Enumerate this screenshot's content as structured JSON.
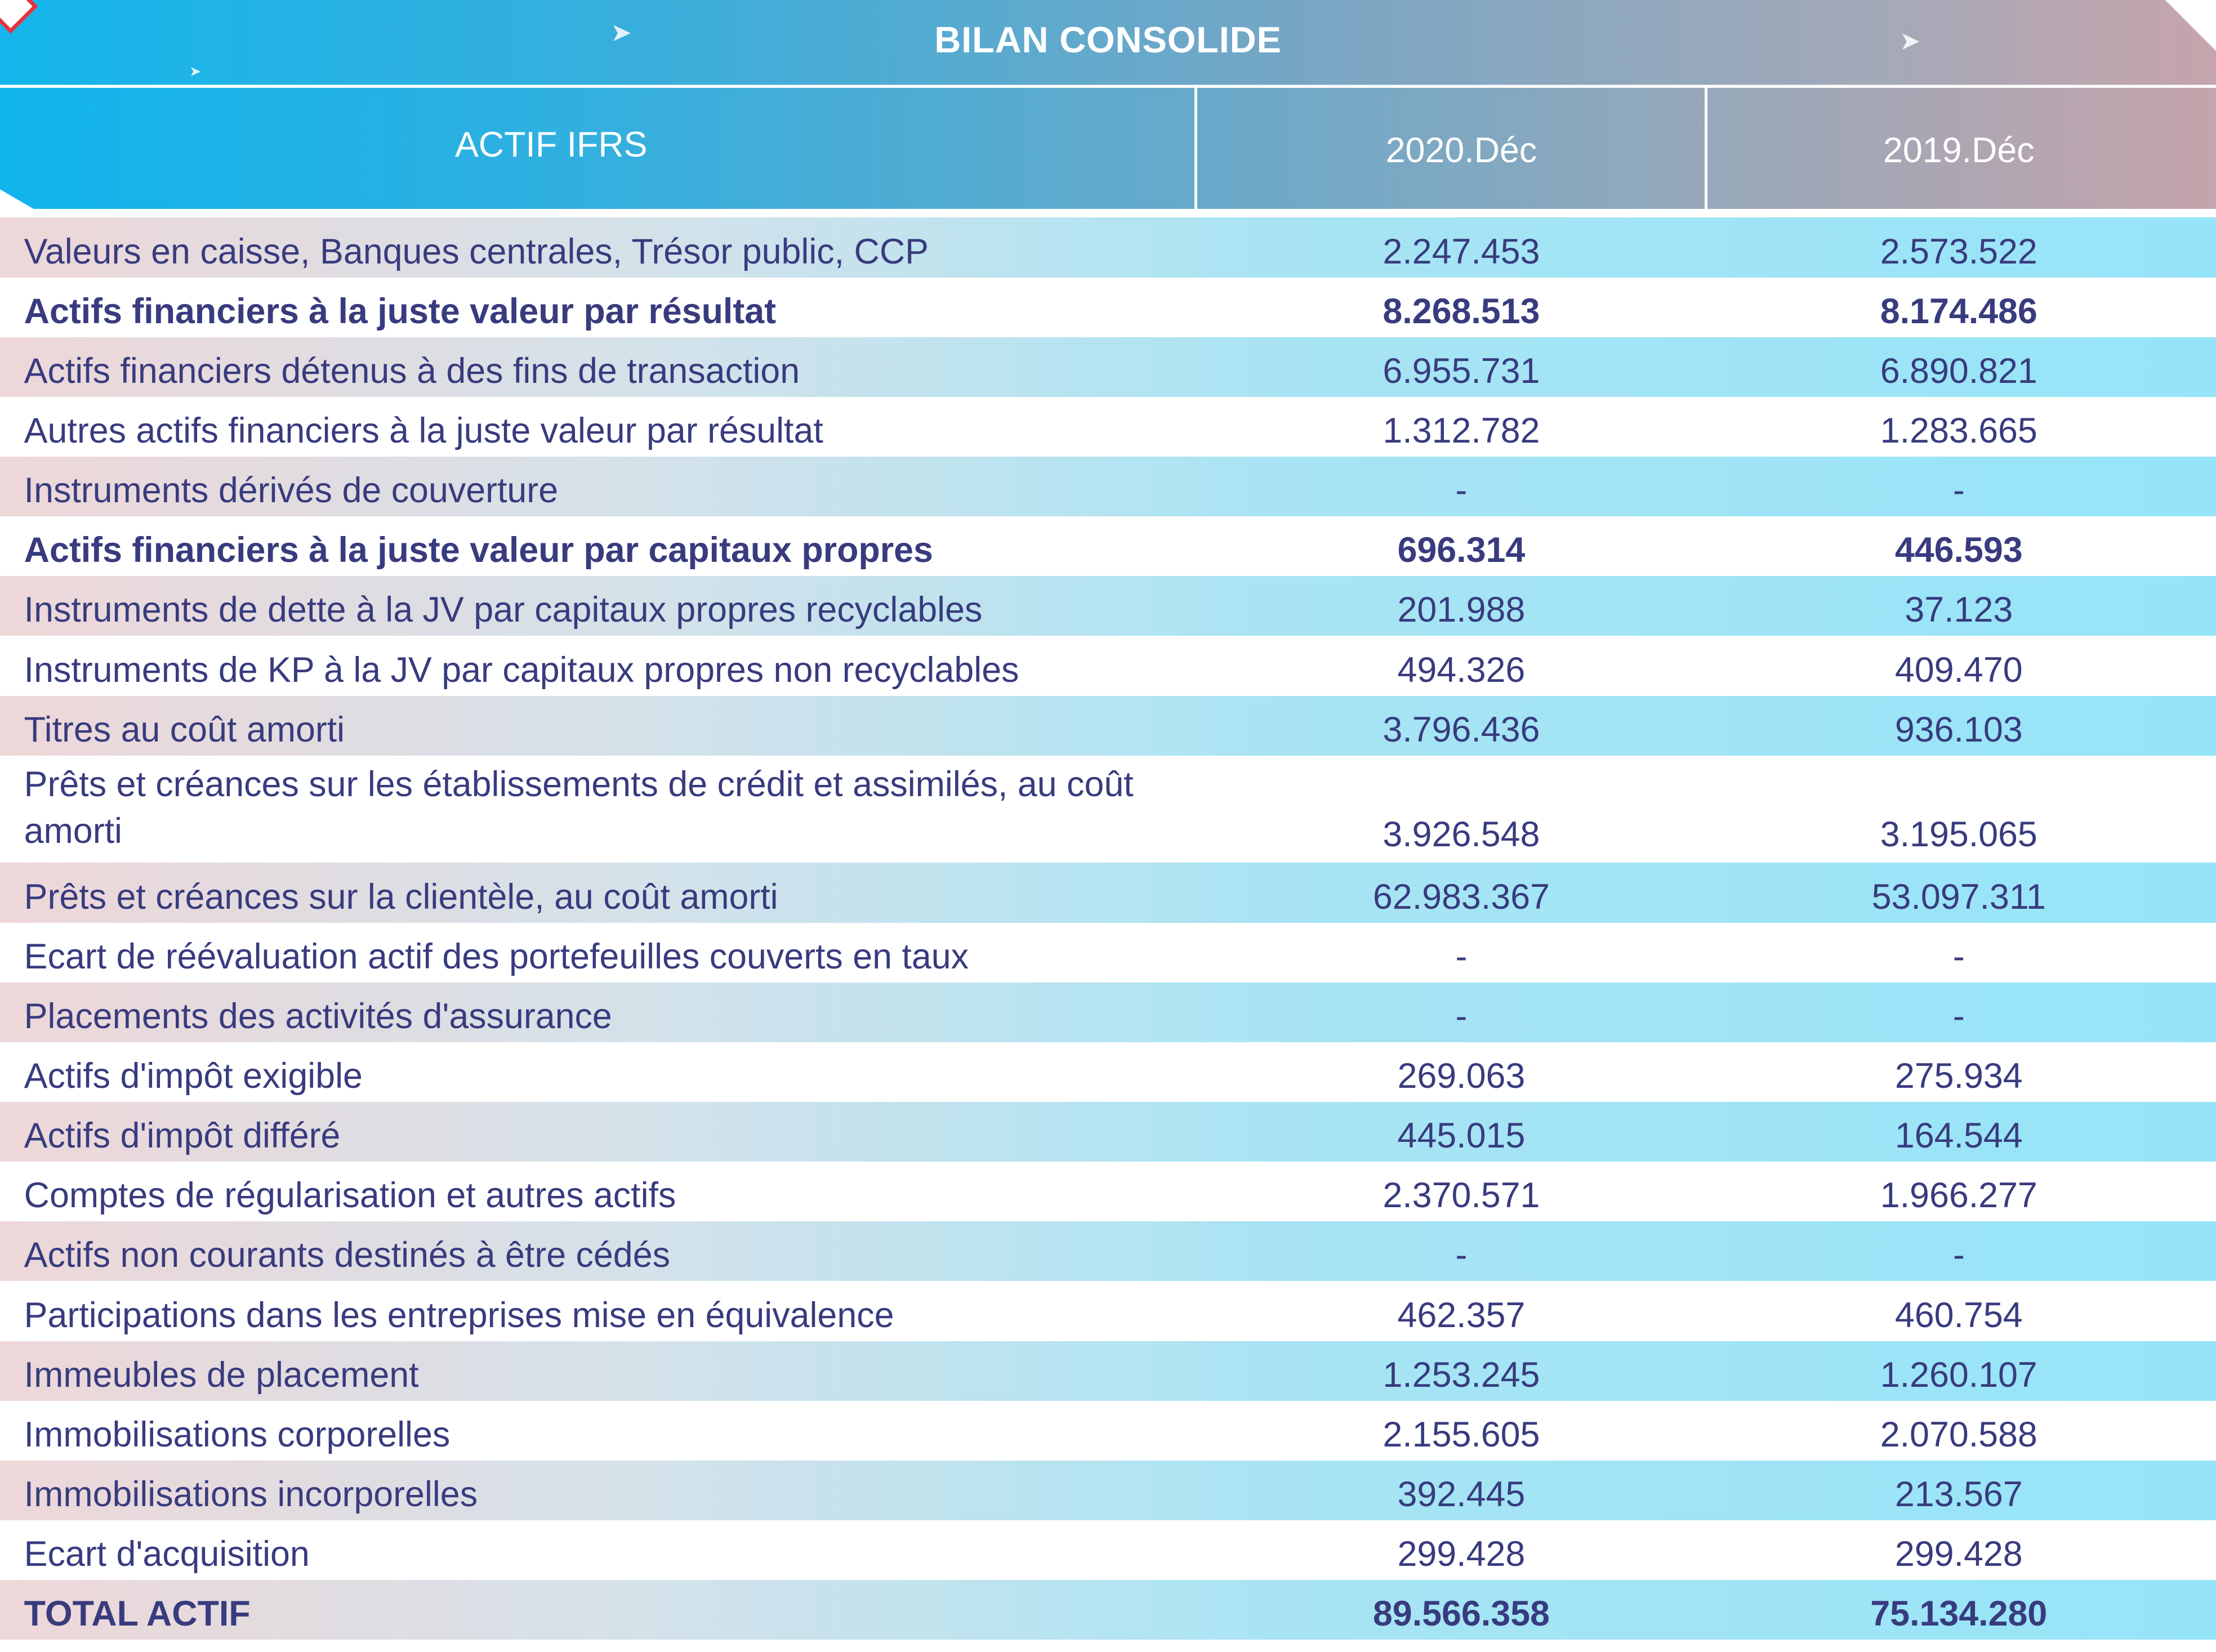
{
  "title": "BILAN CONSOLIDE",
  "header": {
    "label": "ACTIF IFRS",
    "col1": "2020.Déc",
    "col2": "2019.Déc"
  },
  "rows": [
    {
      "label": "Valeurs en caisse, Banques centrales, Trésor public, CCP",
      "v2020": "2.247.453",
      "v2019": "2.573.522",
      "bold": false
    },
    {
      "label": "Actifs financiers à la juste valeur par résultat",
      "v2020": "8.268.513",
      "v2019": "8.174.486",
      "bold": true
    },
    {
      "label": "Actifs financiers détenus à des fins de transaction",
      "v2020": "6.955.731",
      "v2019": "6.890.821",
      "bold": false
    },
    {
      "label": "Autres actifs financiers à la juste valeur par résultat",
      "v2020": "1.312.782",
      "v2019": "1.283.665",
      "bold": false
    },
    {
      "label": "Instruments dérivés de couverture",
      "v2020": "-",
      "v2019": "-",
      "bold": false
    },
    {
      "label": "Actifs financiers à la juste valeur par capitaux propres",
      "v2020": "696.314",
      "v2019": "446.593",
      "bold": true
    },
    {
      "label": "Instruments de dette à la JV par capitaux propres recyclables",
      "v2020": "201.988",
      "v2019": "37.123",
      "bold": false
    },
    {
      "label": "Instruments de KP à la JV par capitaux propres non recyclables",
      "v2020": "494.326",
      "v2019": "409.470",
      "bold": false
    },
    {
      "label": "Titres au coût amorti",
      "v2020": "3.796.436",
      "v2019": "936.103",
      "bold": false
    },
    {
      "label": "Prêts et créances sur les établissements de crédit et assimilés, au coût amorti",
      "v2020": "3.926.548",
      "v2019": "3.195.065",
      "bold": false
    },
    {
      "label": "Prêts et créances sur la clientèle, au coût amorti",
      "v2020": "62.983.367",
      "v2019": "53.097.311",
      "bold": false
    },
    {
      "label": "Ecart de réévaluation actif des portefeuilles couverts en taux",
      "v2020": "-",
      "v2019": "-",
      "bold": false
    },
    {
      "label": "Placements des activités d'assurance",
      "v2020": "-",
      "v2019": "-",
      "bold": false
    },
    {
      "label": "Actifs d'impôt exigible",
      "v2020": "269.063",
      "v2019": "275.934",
      "bold": false
    },
    {
      "label": "Actifs d'impôt différé",
      "v2020": "445.015",
      "v2019": "164.544",
      "bold": false
    },
    {
      "label": "Comptes de régularisation et autres actifs",
      "v2020": "2.370.571",
      "v2019": "1.966.277",
      "bold": false
    },
    {
      "label": "Actifs non courants destinés à être cédés",
      "v2020": "-",
      "v2019": "-",
      "bold": false
    },
    {
      "label": "Participations dans les entreprises mise en équivalence",
      "v2020": "462.357",
      "v2019": "460.754",
      "bold": false
    },
    {
      "label": "Immeubles de placement",
      "v2020": "1.253.245",
      "v2019": "1.260.107",
      "bold": false
    },
    {
      "label": "Immobilisations corporelles",
      "v2020": "2.155.605",
      "v2019": "2.070.588",
      "bold": false
    },
    {
      "label": "Immobilisations incorporelles",
      "v2020": "392.445",
      "v2019": "213.567",
      "bold": false
    },
    {
      "label": "Ecart d'acquisition",
      "v2020": "299.428",
      "v2019": "299.428",
      "bold": false
    },
    {
      "label": "TOTAL ACTIF",
      "v2020": "89.566.358",
      "v2019": "75.134.280",
      "bold": true
    }
  ]
}
